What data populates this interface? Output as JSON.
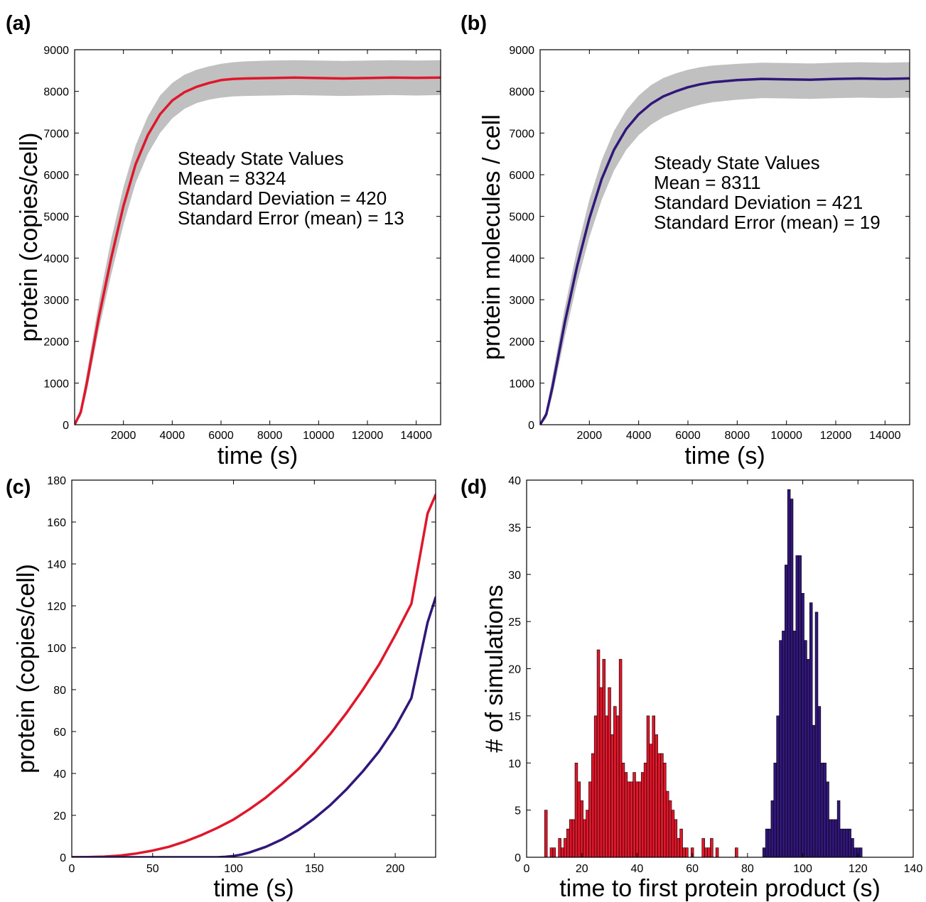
{
  "colors": {
    "red": "#e0162b",
    "blue": "#32177a",
    "band": "#c0c0c0",
    "axis": "#000000"
  },
  "chart_data": [
    {
      "panel_label": "(a)",
      "type": "line",
      "xlabel": "time (s)",
      "ylabel": "protein (copies/cell)",
      "xlim": [
        0,
        15000
      ],
      "ylim": [
        0,
        9000
      ],
      "xticks": [
        2000,
        4000,
        6000,
        8000,
        10000,
        12000,
        14000
      ],
      "yticks": [
        0,
        1000,
        2000,
        3000,
        4000,
        5000,
        6000,
        7000,
        8000,
        9000
      ],
      "grid": false,
      "series": [
        {
          "color": "#e0162b",
          "x": [
            0,
            250,
            500,
            1000,
            1500,
            2000,
            2500,
            3000,
            3500,
            4000,
            4500,
            5000,
            5500,
            6000,
            6500,
            7000,
            8000,
            9000,
            10000,
            11000,
            12000,
            13000,
            14000,
            15000
          ],
          "y": [
            0,
            300,
            1000,
            2600,
            4000,
            5250,
            6250,
            6950,
            7450,
            7780,
            7980,
            8110,
            8200,
            8270,
            8300,
            8310,
            8320,
            8330,
            8320,
            8310,
            8320,
            8330,
            8325,
            8330
          ],
          "band_lower": [
            0,
            200,
            800,
            2300,
            3600,
            4800,
            5800,
            6500,
            7000,
            7350,
            7580,
            7720,
            7800,
            7850,
            7880,
            7890,
            7900,
            7910,
            7900,
            7890,
            7900,
            7910,
            7900,
            7910
          ],
          "band_upper": [
            0,
            400,
            1250,
            2950,
            4450,
            5700,
            6700,
            7400,
            7900,
            8200,
            8400,
            8520,
            8600,
            8660,
            8700,
            8720,
            8740,
            8750,
            8740,
            8730,
            8740,
            8750,
            8740,
            8750
          ]
        }
      ],
      "annotation": [
        "Steady State Values",
        "Mean = 8324",
        "Standard Deviation = 420",
        "Standard Error (mean) = 13"
      ]
    },
    {
      "panel_label": "(b)",
      "type": "line",
      "xlabel": "time (s)",
      "ylabel": "protein molecules / cell",
      "xlim": [
        0,
        15000
      ],
      "ylim": [
        0,
        9000
      ],
      "xticks": [
        2000,
        4000,
        6000,
        8000,
        10000,
        12000,
        14000
      ],
      "yticks": [
        0,
        1000,
        2000,
        3000,
        4000,
        5000,
        6000,
        7000,
        8000,
        9000
      ],
      "grid": false,
      "series": [
        {
          "color": "#32177a",
          "x": [
            0,
            250,
            500,
            1000,
            1500,
            2000,
            2500,
            3000,
            3500,
            4000,
            4500,
            5000,
            5500,
            6000,
            6500,
            7000,
            8000,
            9000,
            10000,
            11000,
            12000,
            13000,
            14000,
            15000
          ],
          "y": [
            0,
            250,
            900,
            2450,
            3800,
            4950,
            5900,
            6600,
            7100,
            7450,
            7700,
            7880,
            8000,
            8100,
            8170,
            8220,
            8270,
            8300,
            8290,
            8280,
            8300,
            8310,
            8300,
            8311
          ],
          "band_lower": [
            0,
            150,
            700,
            2100,
            3400,
            4500,
            5400,
            6100,
            6600,
            6950,
            7200,
            7380,
            7500,
            7600,
            7680,
            7740,
            7800,
            7840,
            7830,
            7820,
            7840,
            7850,
            7840,
            7850
          ],
          "band_upper": [
            0,
            350,
            1150,
            2800,
            4200,
            5400,
            6350,
            7050,
            7550,
            7900,
            8150,
            8320,
            8430,
            8520,
            8580,
            8620,
            8660,
            8690,
            8680,
            8670,
            8690,
            8700,
            8690,
            8700
          ]
        }
      ],
      "annotation": [
        "Steady State Values",
        "Mean = 8311",
        "Standard Deviation = 421",
        "Standard Error (mean) = 19"
      ]
    },
    {
      "panel_label": "(c)",
      "type": "line",
      "xlabel": "time (s)",
      "ylabel": "protein (copies/cell)",
      "xlim": [
        0,
        225
      ],
      "ylim": [
        0,
        180
      ],
      "xticks": [
        0,
        50,
        100,
        150,
        200
      ],
      "yticks": [
        0,
        20,
        40,
        60,
        80,
        100,
        120,
        140,
        160,
        180
      ],
      "grid": false,
      "series": [
        {
          "color": "#e0162b",
          "x": [
            0,
            10,
            20,
            30,
            40,
            50,
            60,
            70,
            80,
            90,
            100,
            110,
            120,
            130,
            140,
            150,
            160,
            170,
            180,
            190,
            200,
            210,
            220,
            225
          ],
          "y": [
            0,
            0.1,
            0.3,
            0.8,
            1.8,
            3.2,
            5,
            7.5,
            10.5,
            14,
            18,
            23,
            28.5,
            35,
            42,
            50,
            59,
            69,
            80,
            92,
            106,
            121,
            164,
            173
          ]
        },
        {
          "color": "#32177a",
          "x": [
            0,
            20,
            40,
            60,
            80,
            90,
            95,
            100,
            105,
            110,
            120,
            130,
            140,
            150,
            160,
            170,
            180,
            190,
            200,
            210,
            220,
            225
          ],
          "y": [
            0,
            0,
            0,
            0,
            0,
            0,
            0.2,
            0.6,
            1.3,
            2.3,
            5,
            8.5,
            13,
            18.5,
            25,
            32.5,
            41,
            50.5,
            62,
            76,
            112,
            124
          ]
        }
      ]
    },
    {
      "panel_label": "(d)",
      "type": "bar",
      "xlabel": "time to first protein product (s)",
      "ylabel": "# of simulations",
      "xlim": [
        0,
        140
      ],
      "ylim": [
        0,
        40
      ],
      "xticks": [
        0,
        20,
        40,
        60,
        80,
        100,
        120,
        140
      ],
      "yticks": [
        0,
        5,
        10,
        15,
        20,
        25,
        30,
        35,
        40
      ],
      "grid": false,
      "bin_width": 1,
      "series": [
        {
          "color": "#e0162b",
          "x": [
            7,
            8,
            9,
            10,
            11,
            12,
            13,
            14,
            15,
            16,
            17,
            18,
            19,
            20,
            21,
            22,
            23,
            24,
            25,
            26,
            27,
            28,
            29,
            30,
            31,
            32,
            33,
            34,
            35,
            36,
            37,
            38,
            39,
            40,
            41,
            42,
            43,
            44,
            45,
            46,
            47,
            48,
            49,
            50,
            51,
            52,
            53,
            54,
            55,
            56,
            57,
            58,
            59,
            60,
            61,
            62,
            63,
            64,
            65,
            66,
            67,
            68,
            69,
            70,
            71,
            72,
            73,
            74,
            75,
            76,
            77,
            78,
            79,
            80
          ],
          "values": [
            5,
            0,
            1,
            1,
            0,
            2,
            1,
            2,
            3,
            4,
            4,
            10,
            8,
            6,
            4,
            5,
            8,
            11,
            15,
            22,
            18,
            21,
            15,
            18,
            13,
            16,
            15,
            21,
            10,
            9,
            8,
            8,
            9,
            8,
            8,
            9,
            10,
            15,
            12,
            15,
            13,
            11,
            11,
            10,
            7,
            6,
            5,
            4,
            2,
            3,
            1,
            1,
            0,
            1,
            0,
            0,
            0,
            2,
            1,
            1,
            2,
            0,
            1,
            0,
            0,
            0,
            0,
            0,
            0,
            1,
            0,
            0,
            0,
            0
          ]
        },
        {
          "color": "#32177a",
          "x": [
            86,
            87,
            88,
            89,
            90,
            91,
            92,
            93,
            94,
            95,
            96,
            97,
            98,
            99,
            100,
            101,
            102,
            103,
            104,
            105,
            106,
            107,
            108,
            109,
            110,
            111,
            112,
            113,
            114,
            115,
            116,
            117,
            118,
            119,
            120,
            121,
            122,
            123,
            124
          ],
          "values": [
            1,
            3,
            3,
            6,
            10,
            15,
            23,
            24,
            31,
            39,
            38,
            24,
            32,
            32,
            28,
            23,
            21,
            27,
            14,
            26,
            16,
            10,
            10,
            8,
            4,
            4,
            4,
            6,
            3,
            3,
            3,
            3,
            2,
            1,
            1,
            1,
            0,
            0,
            0
          ]
        }
      ]
    }
  ]
}
